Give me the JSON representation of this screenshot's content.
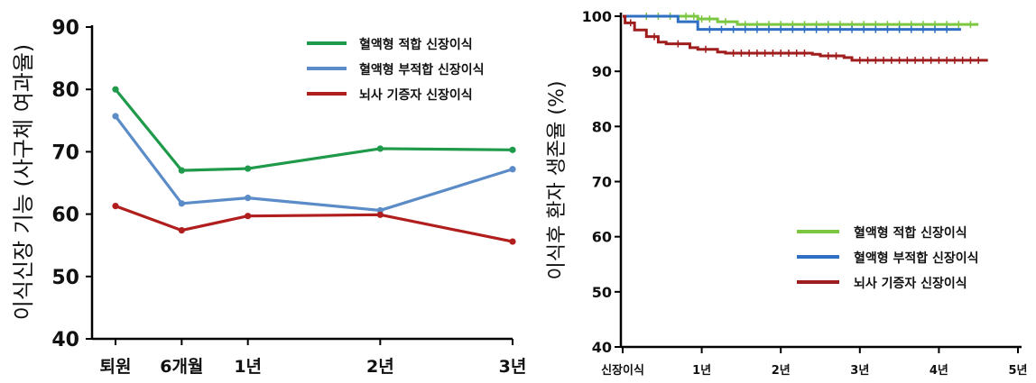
{
  "chart_data": [
    {
      "type": "line",
      "xlabel": "",
      "ylabel": "이식신장 기능 (사구체 여과율)",
      "categories": [
        "퇴원",
        "6개월",
        "1년",
        "2년",
        "3년"
      ],
      "cat_pos": [
        0,
        0.5,
        1,
        2,
        3
      ],
      "ylim": [
        40,
        90
      ],
      "yticks": [
        40,
        50,
        60,
        70,
        80,
        90
      ],
      "grid": false,
      "legend_position": "top-right",
      "series": [
        {
          "name": "혈액형 적합 신장이식",
          "color": "#1e9a4a",
          "values": [
            80,
            67,
            67.3,
            70.5,
            70.3
          ]
        },
        {
          "name": "혈액형 부적합 신장이식",
          "color": "#5b8cc8",
          "values": [
            75.7,
            61.7,
            62.6,
            60.6,
            67.2
          ]
        },
        {
          "name": "뇌사 기증자 신장이식",
          "color": "#b01e1e",
          "values": [
            61.3,
            57.4,
            59.7,
            59.9,
            55.6
          ]
        }
      ]
    },
    {
      "type": "line",
      "xlabel": "",
      "ylabel": "이식후 환자 생존율 (%)",
      "xticks": [
        "신장이식",
        "1년",
        "2년",
        "3년",
        "4년",
        "5년"
      ],
      "xlim": [
        0,
        5
      ],
      "ylim": [
        40,
        100
      ],
      "yticks": [
        40,
        50,
        60,
        70,
        80,
        90,
        100
      ],
      "grid": false,
      "legend_position": "bottom-right",
      "series": [
        {
          "name": "혈액형 적합 신장이식",
          "color": "#7cc742",
          "steps": [
            [
              0,
              100
            ],
            [
              0.95,
              99.5
            ],
            [
              1.2,
              99
            ],
            [
              1.45,
              98.5
            ],
            [
              4.5,
              98.5
            ]
          ],
          "censor": [
            0.3,
            0.45,
            0.6,
            0.8,
            0.9,
            1.0,
            1.1,
            1.3,
            1.55,
            1.7,
            1.85,
            2.0,
            2.15,
            2.3,
            2.45,
            2.6,
            2.75,
            2.9,
            3.05,
            3.2,
            3.35,
            3.5,
            3.65,
            3.8,
            3.95,
            4.1,
            4.25,
            4.4
          ]
        },
        {
          "name": "혈액형 부적합 신장이식",
          "color": "#2f6fc3",
          "steps": [
            [
              0,
              100
            ],
            [
              0.7,
              99
            ],
            [
              0.95,
              97.6
            ],
            [
              4.28,
              97.6
            ]
          ],
          "censor": [
            1.1,
            1.25,
            1.4,
            1.55,
            1.7,
            1.85,
            2.0,
            2.15,
            2.3,
            2.45,
            2.6,
            2.75,
            2.9,
            3.05,
            3.2,
            3.35,
            3.5,
            3.65,
            3.8,
            3.95,
            4.1
          ]
        },
        {
          "name": "뇌사 기증자 신장이식",
          "color": "#a01d1d",
          "steps": [
            [
              0,
              100
            ],
            [
              0.03,
              98.8
            ],
            [
              0.15,
              97.5
            ],
            [
              0.3,
              96.3
            ],
            [
              0.45,
              95.3
            ],
            [
              0.55,
              95
            ],
            [
              0.85,
              94.3
            ],
            [
              0.95,
              94
            ],
            [
              1.2,
              93.5
            ],
            [
              1.3,
              93.3
            ],
            [
              2.4,
              93.1
            ],
            [
              2.5,
              92.8
            ],
            [
              2.8,
              92.5
            ],
            [
              2.9,
              92
            ],
            [
              4.62,
              92
            ]
          ],
          "censor": [
            0.1,
            0.4,
            0.7,
            1.05,
            1.4,
            1.5,
            1.6,
            1.7,
            1.8,
            1.9,
            2.0,
            2.1,
            2.2,
            2.3,
            2.6,
            2.7,
            3.0,
            3.1,
            3.2,
            3.3,
            3.4,
            3.5,
            3.6,
            3.7,
            3.8,
            3.9,
            4.0,
            4.1,
            4.2,
            4.3,
            4.4,
            4.5
          ]
        }
      ]
    }
  ]
}
